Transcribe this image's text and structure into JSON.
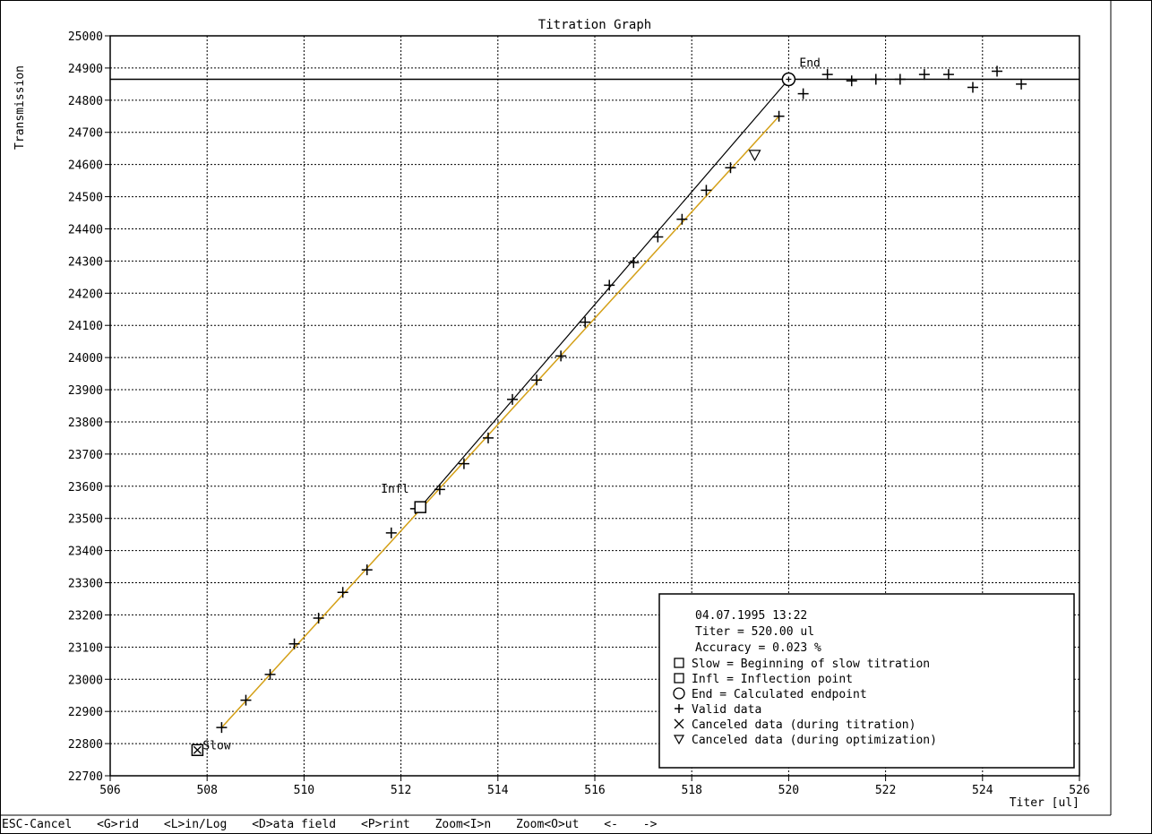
{
  "chart_data": {
    "type": "scatter",
    "title": "Titration Graph",
    "ylabel": "Transmission",
    "xlabel": "Titer [ul]",
    "xlim": [
      506,
      526
    ],
    "ylim": [
      22700,
      25000
    ],
    "x_ticks": [
      506,
      508,
      510,
      512,
      514,
      516,
      518,
      520,
      522,
      524,
      526
    ],
    "y_ticks": [
      22700,
      22800,
      22900,
      23000,
      23100,
      23200,
      23300,
      23400,
      23500,
      23600,
      23700,
      23800,
      23900,
      24000,
      24100,
      24200,
      24300,
      24400,
      24500,
      24600,
      24700,
      24800,
      24900,
      25000
    ],
    "grid": true,
    "colors": {
      "fit_line": "#d4a017",
      "tangent_line": "#000000",
      "markers": "#000000"
    },
    "valid_data": [
      [
        508.3,
        22850
      ],
      [
        508.8,
        22935
      ],
      [
        509.3,
        23015
      ],
      [
        509.8,
        23110
      ],
      [
        510.3,
        23190
      ],
      [
        510.8,
        23270
      ],
      [
        511.3,
        23340
      ],
      [
        511.8,
        23455
      ],
      [
        512.3,
        23530
      ],
      [
        512.8,
        23590
      ],
      [
        513.3,
        23670
      ],
      [
        513.8,
        23750
      ],
      [
        514.3,
        23870
      ],
      [
        514.8,
        23930
      ],
      [
        515.3,
        24005
      ],
      [
        515.8,
        24110
      ],
      [
        516.3,
        24225
      ],
      [
        516.8,
        24295
      ],
      [
        517.3,
        24375
      ],
      [
        517.8,
        24430
      ],
      [
        518.3,
        24520
      ],
      [
        518.8,
        24590
      ],
      [
        519.8,
        24750
      ],
      [
        520.3,
        24820
      ],
      [
        520.8,
        24880
      ],
      [
        521.3,
        24860
      ],
      [
        521.8,
        24865
      ],
      [
        522.3,
        24865
      ],
      [
        522.8,
        24880
      ],
      [
        523.3,
        24880
      ],
      [
        523.8,
        24840
      ],
      [
        524.3,
        24890
      ],
      [
        524.8,
        24850
      ]
    ],
    "canceled_optimization": [
      [
        519.3,
        24630
      ]
    ],
    "fit_line": [
      [
        508.3,
        22850
      ],
      [
        519.8,
        24750
      ]
    ],
    "tangent_line": [
      [
        512.4,
        23535
      ],
      [
        520.0,
        24865
      ]
    ],
    "end_level": 24865,
    "slow_point": {
      "x": 507.8,
      "y": 22780,
      "label": "Slow"
    },
    "infl_point": {
      "x": 512.4,
      "y": 23535,
      "label": "Infl"
    },
    "end_point": {
      "x": 520.0,
      "y": 24865,
      "label": "End"
    },
    "info_box": {
      "datetime": "04.07.1995    13:22",
      "titer": "Titer = 520.00 ul",
      "accuracy": "Accuracy = 0.023 %",
      "legend": [
        {
          "symbol": "square",
          "text": "Slow = Beginning of slow titration"
        },
        {
          "symbol": "square",
          "text": "Infl = Inflection point"
        },
        {
          "symbol": "circle",
          "text": "End = Calculated endpoint"
        },
        {
          "symbol": "plus",
          "text": "Valid data"
        },
        {
          "symbol": "x",
          "text": "Canceled data (during titration)"
        },
        {
          "symbol": "triangle-down",
          "text": "Canceled data (during optimization)"
        }
      ]
    }
  },
  "statusbar": {
    "items": [
      "ESC-Cancel",
      "<G>rid",
      "<L>in/Log",
      "<D>ata field",
      "<P>rint",
      "Zoom<I>n",
      "Zoom<O>ut",
      "<-",
      "->"
    ]
  }
}
